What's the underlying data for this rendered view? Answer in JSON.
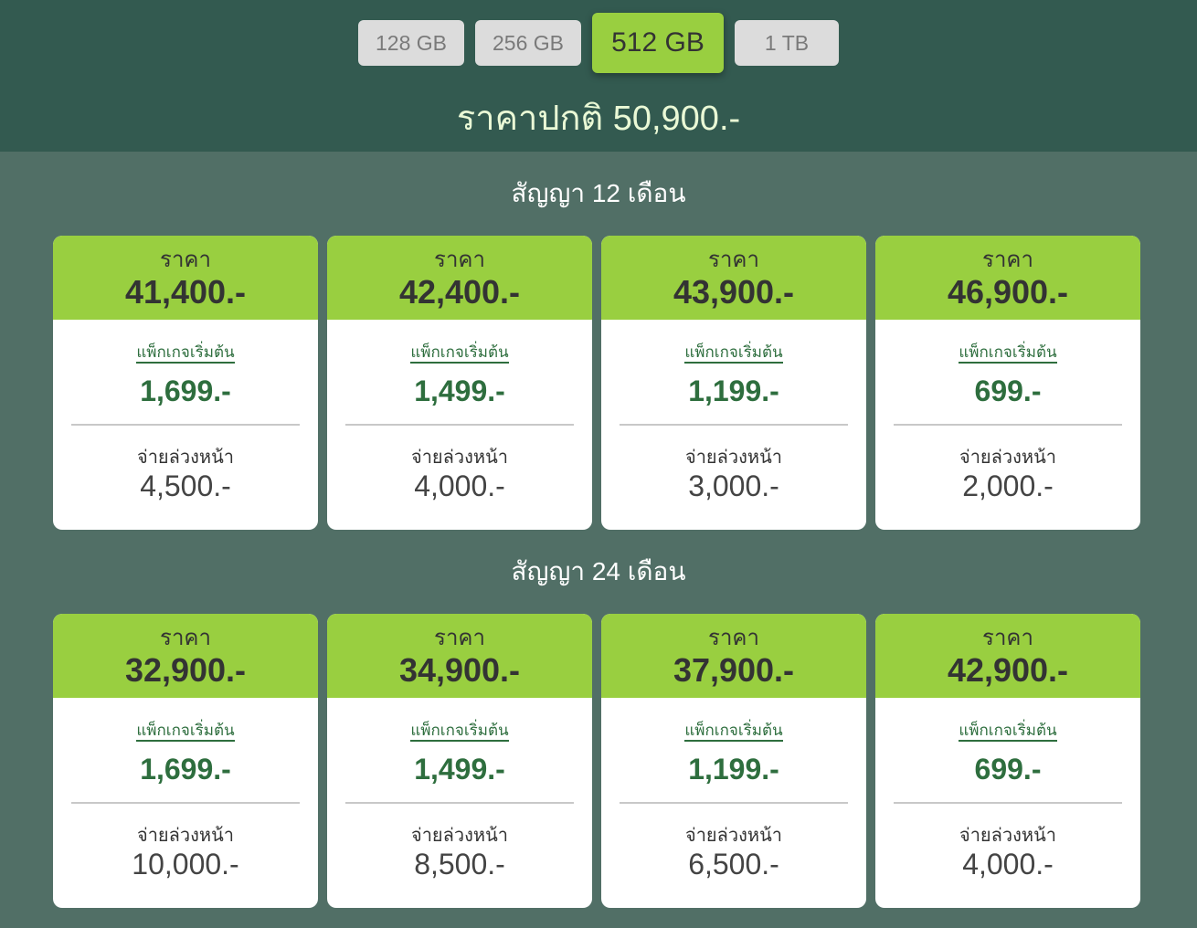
{
  "storage_tabs": [
    {
      "label": "128 GB",
      "active": false
    },
    {
      "label": "256 GB",
      "active": false
    },
    {
      "label": "512 GB",
      "active": true
    },
    {
      "label": "1 TB",
      "active": false
    }
  ],
  "normal_price": "ราคาปกติ 50,900.-",
  "colors": {
    "header_bg": "#335a50",
    "body_bg": "#516f66",
    "accent": "#99cf40",
    "package_green": "#2e6e3e"
  },
  "sections": [
    {
      "title": "สัญญา 12 เดือน",
      "cards": [
        {
          "price_label": "ราคา",
          "price": "41,400.-",
          "package_label": "แพ็กเกจเริ่มต้น",
          "package_price": "1,699.-",
          "advance_label": "จ่ายล่วงหน้า",
          "advance": "4,500.-"
        },
        {
          "price_label": "ราคา",
          "price": "42,400.-",
          "package_label": "แพ็กเกจเริ่มต้น",
          "package_price": "1,499.-",
          "advance_label": "จ่ายล่วงหน้า",
          "advance": "4,000.-"
        },
        {
          "price_label": "ราคา",
          "price": "43,900.-",
          "package_label": "แพ็กเกจเริ่มต้น",
          "package_price": "1,199.-",
          "advance_label": "จ่ายล่วงหน้า",
          "advance": "3,000.-"
        },
        {
          "price_label": "ราคา",
          "price": "46,900.-",
          "package_label": "แพ็กเกจเริ่มต้น",
          "package_price": "699.-",
          "advance_label": "จ่ายล่วงหน้า",
          "advance": "2,000.-"
        }
      ]
    },
    {
      "title": "สัญญา 24 เดือน",
      "cards": [
        {
          "price_label": "ราคา",
          "price": "32,900.-",
          "package_label": "แพ็กเกจเริ่มต้น",
          "package_price": "1,699.-",
          "advance_label": "จ่ายล่วงหน้า",
          "advance": "10,000.-"
        },
        {
          "price_label": "ราคา",
          "price": "34,900.-",
          "package_label": "แพ็กเกจเริ่มต้น",
          "package_price": "1,499.-",
          "advance_label": "จ่ายล่วงหน้า",
          "advance": "8,500.-"
        },
        {
          "price_label": "ราคา",
          "price": "37,900.-",
          "package_label": "แพ็กเกจเริ่มต้น",
          "package_price": "1,199.-",
          "advance_label": "จ่ายล่วงหน้า",
          "advance": "6,500.-"
        },
        {
          "price_label": "ราคา",
          "price": "42,900.-",
          "package_label": "แพ็กเกจเริ่มต้น",
          "package_price": "699.-",
          "advance_label": "จ่ายล่วงหน้า",
          "advance": "4,000.-"
        }
      ]
    }
  ]
}
